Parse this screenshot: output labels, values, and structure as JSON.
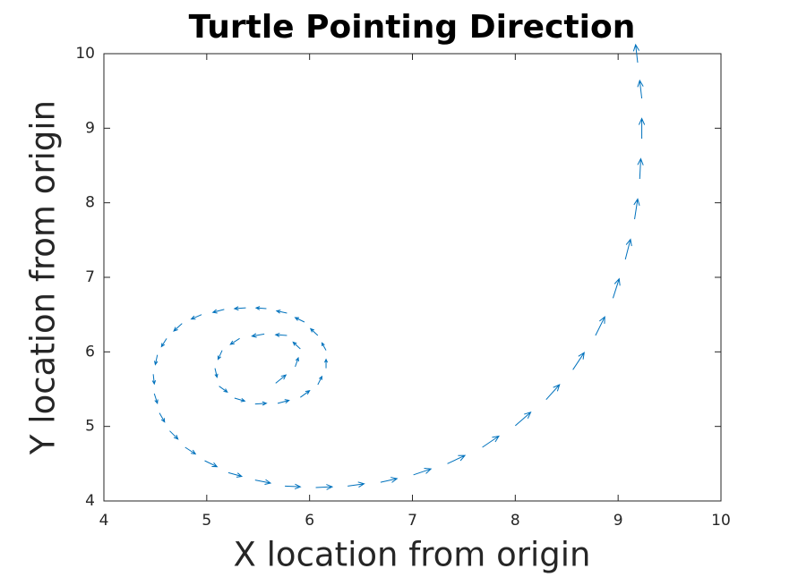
{
  "chart_data": {
    "type": "quiver",
    "title": "Turtle Pointing Direction",
    "xlabel": "X location from origin",
    "ylabel": "Y location from origin",
    "color": "#0072bd",
    "x": [
      5.67,
      5.86,
      5.91,
      5.78,
      5.56,
      5.32,
      5.15,
      5.08,
      5.12,
      5.27,
      5.47,
      5.69,
      5.91,
      6.08,
      6.16,
      6.16,
      6.08,
      5.95,
      5.78,
      5.58,
      5.38,
      5.17,
      4.95,
      4.76,
      4.61,
      4.52,
      4.48,
      4.49,
      4.54,
      4.64,
      4.79,
      4.98,
      5.21,
      5.47,
      5.76,
      6.06,
      6.37,
      6.69,
      7.01,
      7.34,
      7.68,
      8,
      8.3,
      8.56,
      8.78,
      8.95,
      9.07,
      9.16,
      9.21,
      9.23,
      9.23,
      9.19
    ],
    "y": [
      5.58,
      5.8,
      6.04,
      6.22,
      6.24,
      6.18,
      6.02,
      5.78,
      5.54,
      5.38,
      5.3,
      5.31,
      5.39,
      5.56,
      5.78,
      6.02,
      6.22,
      6.4,
      6.52,
      6.58,
      6.59,
      6.57,
      6.5,
      6.38,
      6.18,
      5.96,
      5.7,
      5.44,
      5.18,
      4.94,
      4.72,
      4.54,
      4.38,
      4.28,
      4.2,
      4.18,
      4.2,
      4.25,
      4.35,
      4.5,
      4.72,
      5.01,
      5.36,
      5.76,
      6.22,
      6.72,
      7.24,
      7.78,
      8.32,
      8.86,
      9.4,
      9.88
    ],
    "u": [
      0.1,
      0.03,
      -0.07,
      -0.11,
      -0.12,
      -0.09,
      -0.04,
      0.02,
      0.08,
      0.1,
      0.11,
      0.11,
      0.09,
      0.04,
      0,
      -0.04,
      -0.07,
      -0.09,
      -0.1,
      -0.1,
      -0.11,
      -0.11,
      -0.1,
      -0.08,
      -0.05,
      -0.02,
      0.01,
      0.03,
      0.05,
      0.08,
      0.1,
      0.12,
      0.13,
      0.15,
      0.15,
      0.16,
      0.16,
      0.16,
      0.17,
      0.17,
      0.16,
      0.15,
      0.13,
      0.11,
      0.09,
      0.06,
      0.05,
      0.03,
      0.01,
      0,
      -0.02,
      -0.02
    ],
    "v": [
      0.11,
      0.12,
      0.09,
      0.01,
      -0.03,
      -0.08,
      -0.12,
      -0.12,
      -0.08,
      -0.04,
      0.01,
      0.04,
      0.09,
      0.11,
      0.12,
      0.1,
      0.09,
      0.06,
      0.03,
      0.01,
      -0.01,
      -0.04,
      -0.06,
      -0.1,
      -0.11,
      -0.13,
      -0.13,
      -0.13,
      -0.12,
      -0.11,
      -0.09,
      -0.08,
      -0.05,
      -0.04,
      -0.01,
      0.01,
      0.03,
      0.05,
      0.08,
      0.11,
      0.15,
      0.18,
      0.2,
      0.23,
      0.25,
      0.26,
      0.27,
      0.27,
      0.27,
      0.27,
      0.24,
      0.24
    ],
    "xlim": [
      4,
      10
    ],
    "xticks": [
      4,
      5,
      6,
      7,
      8,
      9,
      10
    ],
    "ylim": [
      4,
      10
    ],
    "yticks": [
      4,
      5,
      6,
      7,
      8,
      9,
      10
    ],
    "grid": false
  }
}
